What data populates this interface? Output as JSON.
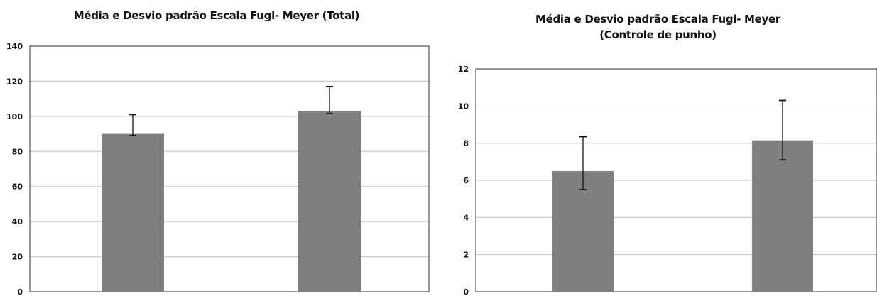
{
  "chart_data": [
    {
      "type": "bar",
      "title_lines": [
        "Média e Desvio padrão Escala Fugl- Meyer (Total)"
      ],
      "categories": [
        "",
        ""
      ],
      "values": [
        90,
        103
      ],
      "error_low": [
        89,
        101.5
      ],
      "error_high": [
        101,
        117
      ],
      "ylim": [
        0,
        140
      ],
      "yticks": [
        "0",
        "20",
        "40",
        "60",
        "80",
        "100",
        "120",
        "140"
      ],
      "grid": true,
      "bar_color": "#7f7f7f"
    },
    {
      "type": "bar",
      "title_lines": [
        "Média e Desvio padrão Escala Fugl- Meyer",
        "(Controle de punho)"
      ],
      "categories": [
        "",
        ""
      ],
      "values": [
        6.5,
        8.15
      ],
      "error_low": [
        5.5,
        7.1
      ],
      "error_high": [
        8.35,
        10.3
      ],
      "ylim": [
        0,
        12
      ],
      "yticks": [
        "0",
        "2",
        "4",
        "6",
        "8",
        "10",
        "12"
      ],
      "grid": true,
      "bar_color": "#7f7f7f"
    }
  ]
}
